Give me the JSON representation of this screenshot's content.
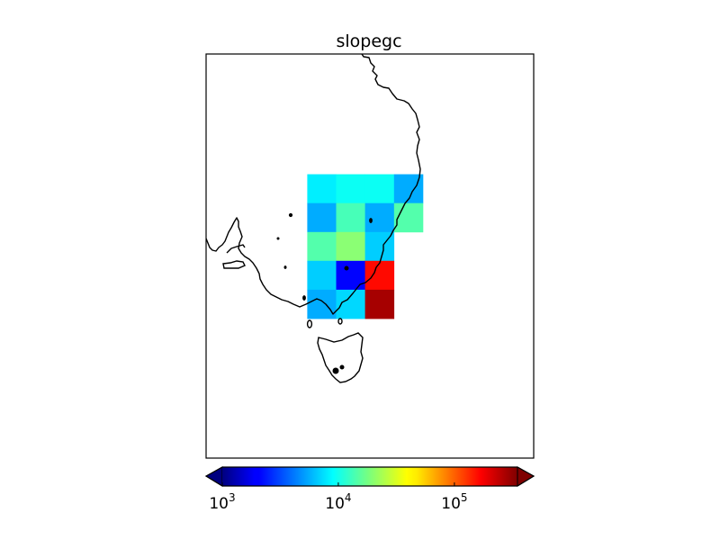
{
  "title": "slopegc",
  "colorbar": {
    "scale": "log",
    "colormap": "jet",
    "extend": "both",
    "range": [
      1000,
      350000
    ],
    "ticks": [
      {
        "base": "10",
        "exp": "3",
        "value": 1000
      },
      {
        "base": "10",
        "exp": "4",
        "value": 10000
      },
      {
        "base": "10",
        "exp": "5",
        "value": 100000
      }
    ]
  },
  "map": {
    "region": "south-east Australia and Tasmania",
    "lon_range": [
      139.5,
      156.5
    ],
    "lat_range": [
      -45.5,
      -24.5
    ],
    "grid": {
      "lon_edges": [
        144.75,
        146.25,
        147.75,
        149.25,
        150.75
      ],
      "lat_edges": [
        -30.75,
        -32.25,
        -33.75,
        -35.25,
        -36.75,
        -38.25
      ],
      "rows": [
        [
          8200,
          9600,
          9600,
          5600
        ],
        [
          5600,
          13500,
          5600,
          14500
        ],
        [
          14500,
          20000,
          6800,
          null
        ],
        [
          6800,
          2100,
          160000,
          null
        ],
        [
          5600,
          7200,
          280000,
          null
        ]
      ]
    }
  }
}
